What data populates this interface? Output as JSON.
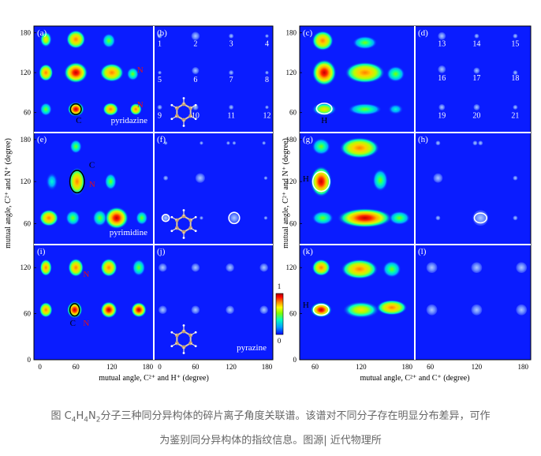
{
  "figure": {
    "colors": {
      "background": "#0a1cff",
      "frame": "#000000",
      "separator": "#ffffff"
    },
    "panels": [
      {
        "id": "a",
        "label": "(a)",
        "molecule": "pyridazine",
        "annotations": [
          {
            "text": "N",
            "color": "red",
            "xv": 162,
            "yv": 120
          },
          {
            "text": "N",
            "color": "red",
            "xv": 162,
            "yv": 68
          },
          {
            "text": "C",
            "color": "black",
            "xv": 60,
            "yv": 44
          }
        ]
      },
      {
        "id": "b",
        "label": "(b)",
        "numbers": [
          "1",
          "2",
          "3",
          "4",
          "5",
          "6",
          "7",
          "8",
          "9",
          "10",
          "11",
          "12"
        ]
      },
      {
        "id": "c",
        "label": "(c)",
        "annotations": [
          {
            "text": "H",
            "color": "black",
            "xv": 68,
            "yv": 44
          }
        ]
      },
      {
        "id": "d",
        "label": "(d)",
        "numbers": [
          "13",
          "14",
          "15",
          "16",
          "17",
          "18",
          "19",
          "20",
          "21"
        ]
      },
      {
        "id": "e",
        "label": "(e)",
        "molecule": "pyrimidine",
        "annotations": [
          {
            "text": "C",
            "color": "black",
            "xv": 82,
            "yv": 140
          },
          {
            "text": "N",
            "color": "red",
            "xv": 82,
            "yv": 112
          }
        ]
      },
      {
        "id": "f",
        "label": "(f)"
      },
      {
        "id": "g",
        "label": "(g)",
        "annotations": [
          {
            "text": "H",
            "color": "black",
            "xv": 44,
            "yv": 120
          }
        ]
      },
      {
        "id": "h",
        "label": "(h)"
      },
      {
        "id": "i",
        "label": "(i)",
        "annotations": [
          {
            "text": "N",
            "color": "red",
            "xv": 72,
            "yv": 108
          },
          {
            "text": "C",
            "color": "black",
            "xv": 50,
            "yv": 44
          },
          {
            "text": "N",
            "color": "red",
            "xv": 72,
            "yv": 44
          }
        ]
      },
      {
        "id": "j",
        "label": "(j)",
        "molecule": "pyrazine"
      },
      {
        "id": "k",
        "label": "(k)",
        "annotations": [
          {
            "text": "H",
            "color": "black",
            "xv": 44,
            "yv": 68
          }
        ]
      },
      {
        "id": "l",
        "label": "(l)"
      }
    ],
    "axes": {
      "y_label": "mutual angle, C²⁺ and N⁺ (degree)",
      "x_label_left": "mutual angle, C²⁺ and H⁺ (degree)",
      "x_label_right": "mutual angle, C²⁺ and C⁺ (degree)",
      "y_ticks_rows_1_2": [
        "60",
        "120",
        "180"
      ],
      "y_ticks_row_3": [
        "0",
        "60",
        "120"
      ],
      "x_ticks_left": [
        "0",
        "60",
        "120",
        "180"
      ],
      "x_ticks_right": [
        "60",
        "120",
        "180"
      ]
    },
    "colorbar": {
      "top_label": "1",
      "bottom_label": "0",
      "stops": [
        "#0000ff",
        "#00a0ff",
        "#00ffc0",
        "#80ff00",
        "#ffff00",
        "#ff8000",
        "#ff0000",
        "#a00000"
      ]
    }
  },
  "caption": {
    "prefix": "图 C",
    "sub1": "4",
    "mid1": "H",
    "sub2": "4",
    "mid2": "N",
    "sub3": "2",
    "text1": "分子三种同分异构体的碎片离子角度关联谱。该谱对不同分子存在明显分布差异，可作",
    "text2": "为鉴别同分异构体的指纹信息。图源| 近代物理所"
  }
}
